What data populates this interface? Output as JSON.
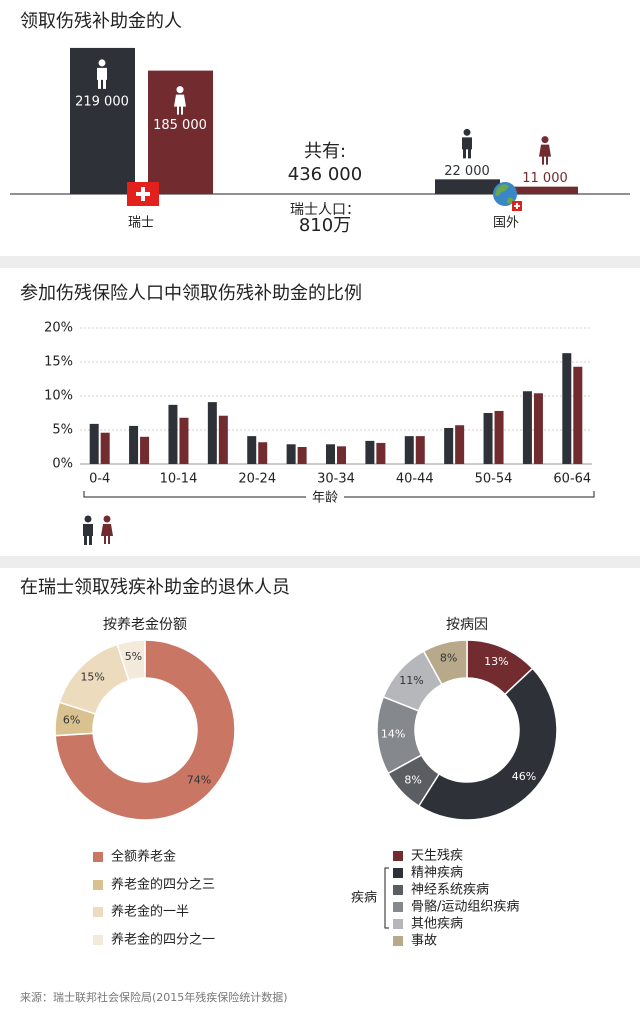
{
  "chart_data": [
    {
      "type": "bar",
      "title": "领取伤残补助金的人",
      "categories": [
        "瑞士",
        "国外"
      ],
      "series": [
        {
          "color": "#2e3238",
          "values": [
            219000,
            22000
          ],
          "value_labels": [
            "219 000",
            "22 000"
          ]
        },
        {
          "color": "#722b2f",
          "values": [
            185000,
            11000
          ],
          "value_labels": [
            "185 000",
            "11 000"
          ]
        }
      ],
      "annotations": [
        "共有:",
        "436 000",
        "瑞士人口：",
        "810万"
      ]
    },
    {
      "type": "grouped-bar",
      "title": "参加伤残保险人口中领取伤残补助金的比例",
      "x_label": "年龄",
      "categories": [
        "0-4",
        null,
        "10-14",
        null,
        "20-24",
        null,
        "30-34",
        null,
        "40-44",
        null,
        "50-54",
        null,
        "60-64"
      ],
      "series": [
        {
          "color": "#2e3238",
          "values": [
            5.9,
            5.6,
            8.7,
            9.1,
            4.1,
            2.9,
            2.9,
            3.4,
            4.1,
            5.3,
            7.5,
            10.7,
            16.3
          ]
        },
        {
          "color": "#722b2f",
          "values": [
            4.6,
            4.0,
            6.8,
            7.1,
            3.2,
            2.5,
            2.6,
            3.1,
            4.1,
            5.7,
            7.8,
            10.4,
            14.3
          ]
        }
      ],
      "ylim": [
        0,
        20
      ],
      "yticks": [
        {
          "value": 0,
          "label": "0%"
        },
        {
          "value": 5,
          "label": "5%"
        },
        {
          "value": 10,
          "label": "10%"
        },
        {
          "value": 15,
          "label": "15%"
        },
        {
          "value": 20,
          "label": "20%"
        }
      ],
      "grid": true
    },
    {
      "type": "donut",
      "title": "在瑞士领取残疾补助金的退休人员",
      "subtitle": "按养老金份额",
      "categories": [
        "全额养老金",
        "养老金的四分之三",
        "养老金的一半",
        "养老金的四分之一"
      ],
      "values": [
        74,
        6,
        15,
        5
      ],
      "value_labels": [
        "74%",
        "6%",
        "15%",
        "5%"
      ],
      "colors": [
        "#c97764",
        "#d9c28f",
        "#ecdcbd",
        "#f4eadb"
      ]
    },
    {
      "type": "donut",
      "subtitle": "按病因",
      "categories": [
        "天生残疾",
        "精神疾病",
        "神经系统疾病",
        "骨骼/运动组织疾病",
        "其他疾病",
        "事故"
      ],
      "values": [
        13,
        46,
        8,
        14,
        11,
        8
      ],
      "value_labels": [
        "13%",
        "46%",
        "8%",
        "14%",
        "11%",
        "8%"
      ],
      "colors": [
        "#722b2f",
        "#2e3238",
        "#5a5d62",
        "#85888c",
        "#b5b7ba",
        "#b8a98a"
      ],
      "annotations": [
        "疾病"
      ]
    }
  ],
  "source": "来源：瑞士联邦社会保险局(2015年残疾保险统计数据)"
}
